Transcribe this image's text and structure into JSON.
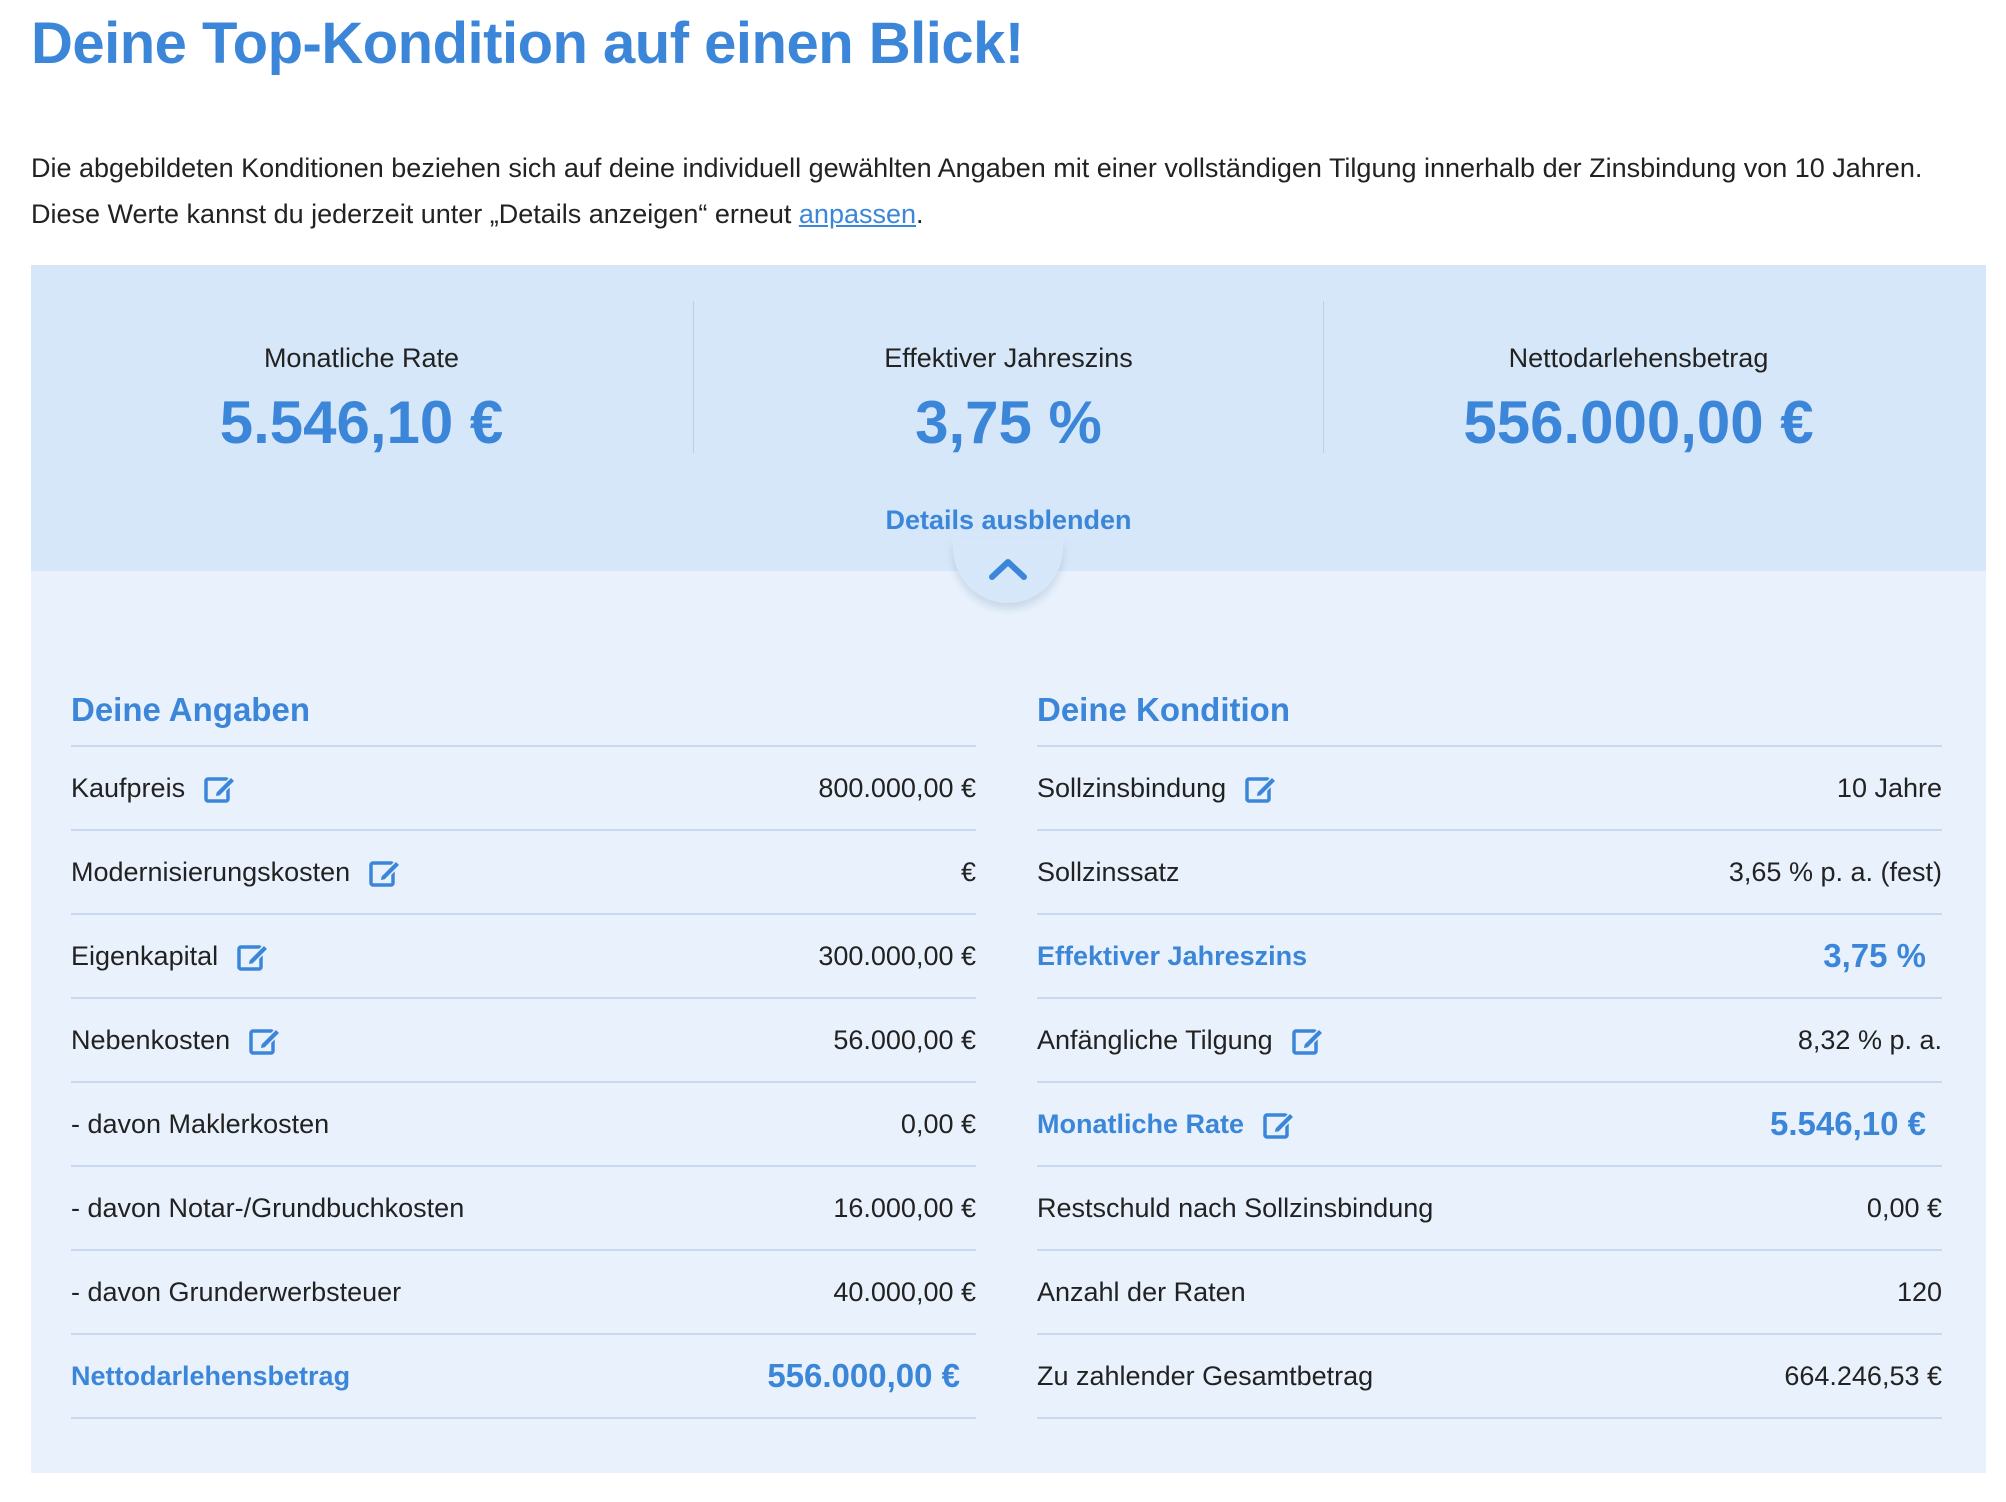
{
  "header": {
    "title": "Deine Top-Kondition auf einen Blick!",
    "intro_text": "Die abgebildeten Konditionen beziehen sich auf deine individuell gewählten Angaben mit einer vollständigen Tilgung innerhalb der Zinsbindung von 10 Jahren. Diese Werte kannst du jederzeit unter „Details anzeigen“ erneut ",
    "intro_link": "anpassen",
    "intro_end": "."
  },
  "summary": {
    "items": [
      {
        "label": "Monatliche Rate",
        "value": "5.546,10 €"
      },
      {
        "label": "Effektiver Jahreszins",
        "value": "3,75 %"
      },
      {
        "label": "Nettodarlehensbetrag",
        "value": "556.000,00 €"
      }
    ],
    "toggle_label": "Details ausblenden"
  },
  "angaben": {
    "title": "Deine Angaben",
    "rows": [
      {
        "label": "Kaufpreis",
        "value": "800.000,00 €"
      },
      {
        "label": "Modernisierungskosten",
        "value": "€"
      },
      {
        "label": "Eigenkapital",
        "value": "300.000,00 €"
      },
      {
        "label": "Nebenkosten",
        "value": "56.000,00 €"
      },
      {
        "label": "- davon Maklerkosten",
        "value": "0,00 €"
      },
      {
        "label": "- davon Notar-/Grundbuchkosten",
        "value": "16.000,00 €"
      },
      {
        "label": "- davon Grunderwerbsteuer",
        "value": "40.000,00 €"
      },
      {
        "label": "Nettodarlehensbetrag",
        "value": "556.000,00 €"
      }
    ]
  },
  "kondition": {
    "title": "Deine Kondition",
    "rows": [
      {
        "label": "Sollzinsbindung",
        "value": "10 Jahre"
      },
      {
        "label": "Sollzinssatz",
        "value": "3,65 % p. a. (fest)"
      },
      {
        "label": "Effektiver Jahreszins",
        "value": "3,75 %"
      },
      {
        "label": "Anfängliche Tilgung",
        "value": "8,32 % p. a."
      },
      {
        "label": "Monatliche Rate",
        "value": "5.546,10 €"
      },
      {
        "label": "Restschuld nach Sollzinsbindung",
        "value": "0,00 €"
      },
      {
        "label": "Anzahl der Raten",
        "value": "120"
      },
      {
        "label": "Zu zahlender Gesamtbetrag",
        "value": "664.246,53 €"
      }
    ]
  },
  "icons": {
    "edit": "edit-icon",
    "toggle": "chevron-up-icon"
  },
  "colors": {
    "accent": "#3b86d9",
    "summary_bg": "#d6e7f9",
    "card_bg": "#e9f2fc",
    "divider": "#c6d9ee"
  }
}
